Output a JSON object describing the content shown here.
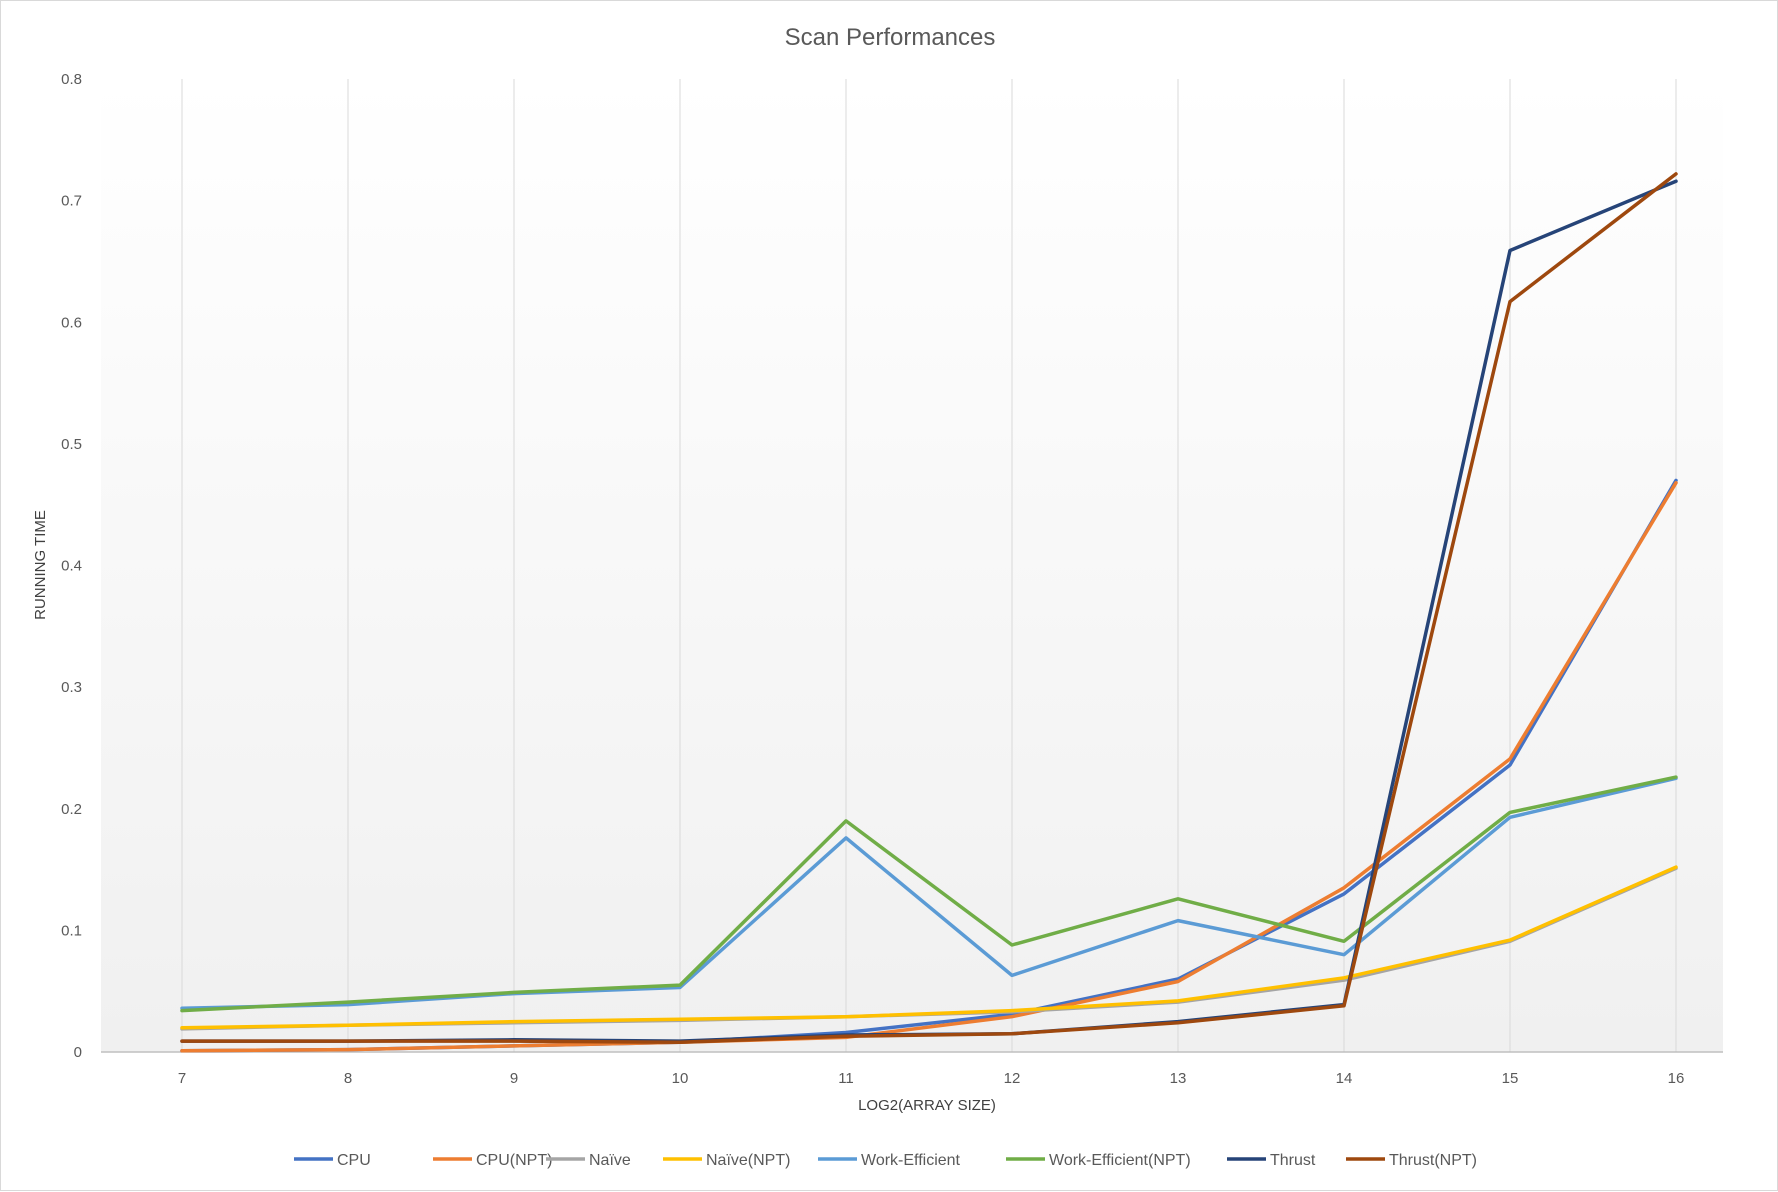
{
  "chart_data": {
    "type": "line",
    "title": "Scan Performances",
    "xlabel": "LOG2(ARRAY SIZE)",
    "ylabel": "RUNNING TIME",
    "categories": [
      "7",
      "8",
      "9",
      "10",
      "11",
      "12",
      "13",
      "14",
      "15",
      "16"
    ],
    "ylim": [
      0,
      0.8
    ],
    "yticks": [
      "0",
      "0.1",
      "0.2",
      "0.3",
      "0.4",
      "0.5",
      "0.6",
      "0.7",
      "0.8"
    ],
    "grid": "vertical-only",
    "legend_position": "bottom",
    "series": [
      {
        "name": "CPU",
        "color": "#4472C4",
        "values": [
          0.001,
          0.002,
          0.005,
          0.008,
          0.016,
          0.031,
          0.06,
          0.13,
          0.236,
          0.47
        ]
      },
      {
        "name": "CPU(NPT)",
        "color": "#ED7D31",
        "values": [
          0.001,
          0.002,
          0.005,
          0.008,
          0.012,
          0.029,
          0.058,
          0.135,
          0.241,
          0.468
        ]
      },
      {
        "name": "Naïve",
        "color": "#A5A5A5",
        "values": [
          0.019,
          0.022,
          0.024,
          0.026,
          0.029,
          0.033,
          0.041,
          0.059,
          0.091,
          0.151
        ]
      },
      {
        "name": "Naïve(NPT)",
        "color": "#FFC000",
        "values": [
          0.02,
          0.022,
          0.025,
          0.027,
          0.029,
          0.034,
          0.042,
          0.061,
          0.092,
          0.152
        ]
      },
      {
        "name": "Work-Efficient",
        "color": "#5B9BD5",
        "values": [
          0.036,
          0.039,
          0.048,
          0.053,
          0.176,
          0.063,
          0.108,
          0.08,
          0.193,
          0.225
        ]
      },
      {
        "name": "Work-Efficient(NPT)",
        "color": "#70AD47",
        "values": [
          0.034,
          0.041,
          0.049,
          0.055,
          0.19,
          0.088,
          0.126,
          0.091,
          0.197,
          0.226
        ]
      },
      {
        "name": "Thrust",
        "color": "#264478",
        "values": [
          0.009,
          0.009,
          0.01,
          0.009,
          0.014,
          0.015,
          0.025,
          0.039,
          0.659,
          0.716
        ]
      },
      {
        "name": "Thrust(NPT)",
        "color": "#9E480E",
        "values": [
          0.009,
          0.009,
          0.009,
          0.008,
          0.013,
          0.015,
          0.024,
          0.038,
          0.617,
          0.722
        ]
      }
    ]
  }
}
